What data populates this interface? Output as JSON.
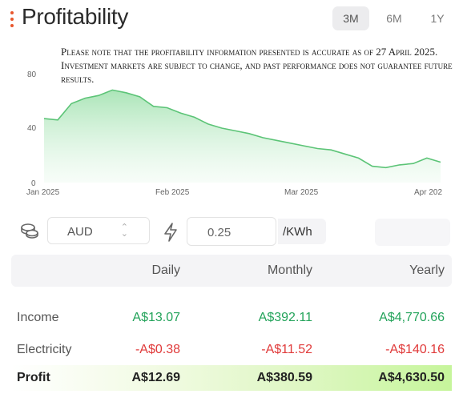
{
  "header": {
    "title": "Profitability",
    "ranges": [
      "3M",
      "6M",
      "1Y"
    ],
    "active_range": "3M"
  },
  "disclaimer": "Please note that the profitability information presented is accurate as of 27 April 2025. Investment markets are subject to change, and past performance does not guarantee future results.",
  "chart_data": {
    "type": "area",
    "y_ticks": [
      "80",
      "40",
      "0"
    ],
    "x_tick_labels": [
      "Jan 2025",
      "Feb 2025",
      "Mar 2025",
      "Apr 202"
    ],
    "ylim": [
      0,
      80
    ],
    "grid": false,
    "color": "#5cc477",
    "x": [
      "2025-01-01",
      "2025-01-05",
      "2025-01-09",
      "2025-01-13",
      "2025-01-17",
      "2025-01-21",
      "2025-01-25",
      "2025-01-29",
      "2025-02-02",
      "2025-02-06",
      "2025-02-10",
      "2025-02-14",
      "2025-02-18",
      "2025-02-22",
      "2025-02-26",
      "2025-03-02",
      "2025-03-06",
      "2025-03-10",
      "2025-03-14",
      "2025-03-18",
      "2025-03-22",
      "2025-03-26",
      "2025-03-30",
      "2025-04-03",
      "2025-04-07",
      "2025-04-11",
      "2025-04-15",
      "2025-04-19",
      "2025-04-23",
      "2025-04-27"
    ],
    "values": [
      47,
      46,
      58,
      62,
      64,
      68,
      66,
      63,
      56,
      55,
      51,
      48,
      43,
      40,
      38,
      36,
      33,
      31,
      29,
      27,
      25,
      24,
      21,
      18,
      12,
      11,
      13,
      14,
      18,
      15
    ]
  },
  "controls": {
    "currency": "AUD",
    "currency_icon": "coins-icon",
    "power_icon": "lightning-bolt-icon",
    "electricity_price": "0.25",
    "price_unit": "/KWh"
  },
  "table": {
    "headers": [
      "Daily",
      "Monthly",
      "Yearly"
    ],
    "income": {
      "label": "Income",
      "daily": "A$13.07",
      "monthly": "A$392.11",
      "yearly": "A$4,770.66"
    },
    "electricity": {
      "label": "Electricity",
      "daily": "-A$0.38",
      "monthly": "-A$11.52",
      "yearly": "-A$140.16"
    },
    "profit": {
      "label": "Profit",
      "daily": "A$12.69",
      "monthly": "A$380.59",
      "yearly": "A$4,630.50"
    }
  },
  "colors": {
    "accent": "#e8572d",
    "positive": "#23a35a",
    "negative": "#e03a3a"
  }
}
